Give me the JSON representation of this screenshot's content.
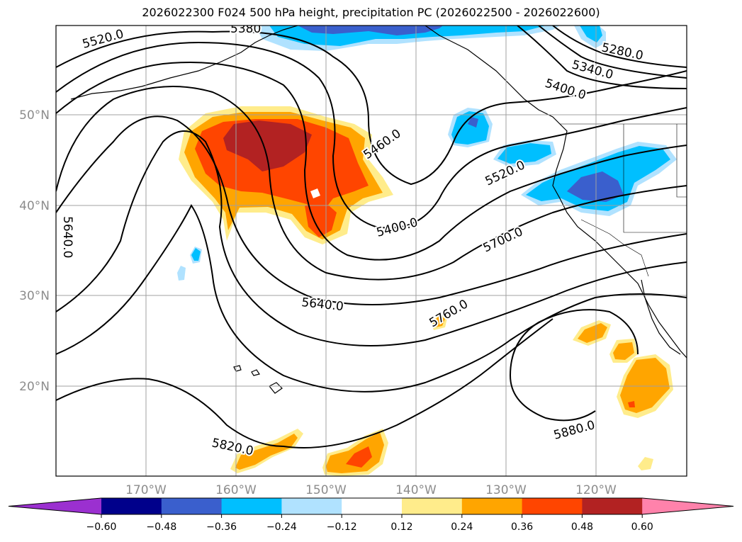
{
  "title": "2026022300 F024 500 hPa height, precipitation PC (2026022500 - 2026022600)",
  "map": {
    "projection_extent": {
      "lon_range_deg": [
        -180,
        -110
      ],
      "lat_range_deg": [
        10,
        60
      ]
    },
    "graticule_color": "#a0a0a0",
    "latitude_labels": [
      "50°N",
      "40°N",
      "30°N",
      "20°N"
    ],
    "longitude_labels": [
      "170°W",
      "160°W",
      "150°W",
      "140°W",
      "130°W",
      "120°W"
    ],
    "contour_labels": [
      "5520.0",
      "5380",
      "5280.0",
      "5340.0",
      "5400.0",
      "5460.0",
      "5520.0",
      "5400.0",
      "5640.0",
      "5700.0",
      "5640.0",
      "5760.0",
      "5880.0",
      "5820.0"
    ]
  },
  "colorbar": {
    "colors": [
      "#9b30d0",
      "#00008b",
      "#3a5fcd",
      "#00bfff",
      "#b0e2ff",
      "#ffffff",
      "#ffec8b",
      "#ffa500",
      "#ff4500",
      "#b22222",
      "#ff82ab"
    ],
    "tick_labels": [
      "−0.60",
      "−0.48",
      "−0.36",
      "−0.24",
      "−0.12",
      "0.12",
      "0.24",
      "0.36",
      "0.48",
      "0.60"
    ]
  }
}
